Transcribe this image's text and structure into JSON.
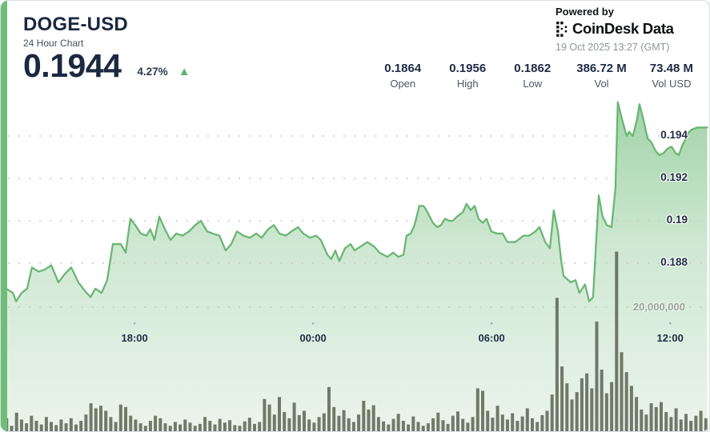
{
  "header": {
    "symbol": "DOGE-USD",
    "subtitle": "24 Hour Chart",
    "price": "0.1944",
    "change": "4.27%",
    "powered_by": "Powered by",
    "brand": "CoinDesk Data",
    "timestamp": "19 Oct 2025 13:27 (GMT)"
  },
  "stats": [
    {
      "value": "0.1864",
      "label": "Open"
    },
    {
      "value": "0.1956",
      "label": "High"
    },
    {
      "value": "0.1862",
      "label": "Low"
    },
    {
      "value": "386.72 M",
      "label": "Vol"
    },
    {
      "value": "73.48 M",
      "label": "Vol USD"
    }
  ],
  "colors": {
    "accent_green": "#6fbe78",
    "line": "#68b671",
    "area_top": "#9ed2a5",
    "area_mid": "#cfe8d2",
    "area_bottom": "#ebf4ec",
    "bar": "#5b6454",
    "grid": "#c6cad1",
    "tick_dot": "#aab0b8",
    "navy": "#1b2840",
    "change_green": "#58b368"
  },
  "chart_data": {
    "type": "area-line with volume bars",
    "title": "DOGE-USD 24 Hour Chart",
    "x_axis": "time (24h window ending 13:27 GMT)",
    "x_ticks": [
      {
        "label": "18:00",
        "hour": 4.55
      },
      {
        "label": "00:00",
        "hour": 10.55
      },
      {
        "label": "06:00",
        "hour": 16.55
      },
      {
        "label": "12:00",
        "hour": 22.55
      }
    ],
    "y_ticks_price": [
      {
        "label": "0.194",
        "value": 0.194
      },
      {
        "label": "0.192",
        "value": 0.192
      },
      {
        "label": "0.19",
        "value": 0.19
      },
      {
        "label": "0.188",
        "value": 0.188
      }
    ],
    "y_tick_volume": {
      "label": "20,000,000",
      "value_millions": 20
    },
    "price_visible_range": [
      0.1862,
      0.1956
    ],
    "grid": "dotted horizontal",
    "series": {
      "name": "DOGE-USD price",
      "points": [
        [
          0,
          0.187
        ],
        [
          0.46,
          0.1866
        ],
        [
          0.57,
          0.1862
        ],
        [
          0.75,
          0.1866
        ],
        [
          0.94,
          0.1868
        ],
        [
          1.1,
          0.1878
        ],
        [
          1.32,
          0.1876
        ],
        [
          1.53,
          0.1877
        ],
        [
          1.75,
          0.1879
        ],
        [
          1.99,
          0.1871
        ],
        [
          2.21,
          0.1875
        ],
        [
          2.42,
          0.1878
        ],
        [
          2.66,
          0.1871
        ],
        [
          2.88,
          0.1867
        ],
        [
          3.07,
          0.1864
        ],
        [
          3.23,
          0.1868
        ],
        [
          3.44,
          0.1866
        ],
        [
          3.63,
          0.1872
        ],
        [
          3.82,
          0.1889
        ],
        [
          4.09,
          0.1889
        ],
        [
          4.25,
          0.1885
        ],
        [
          4.41,
          0.1901
        ],
        [
          4.57,
          0.1898
        ],
        [
          4.76,
          0.1894
        ],
        [
          4.95,
          0.1893
        ],
        [
          5.08,
          0.1896
        ],
        [
          5.22,
          0.1891
        ],
        [
          5.38,
          0.1902
        ],
        [
          5.57,
          0.1896
        ],
        [
          5.76,
          0.1891
        ],
        [
          5.95,
          0.1894
        ],
        [
          6.16,
          0.1893
        ],
        [
          6.38,
          0.1895
        ],
        [
          6.59,
          0.1898
        ],
        [
          6.78,
          0.19
        ],
        [
          6.99,
          0.1895
        ],
        [
          7.18,
          0.1894
        ],
        [
          7.4,
          0.1893
        ],
        [
          7.61,
          0.1886
        ],
        [
          7.8,
          0.1889
        ],
        [
          7.99,
          0.1895
        ],
        [
          8.21,
          0.1893
        ],
        [
          8.42,
          0.1892
        ],
        [
          8.64,
          0.1894
        ],
        [
          8.82,
          0.1892
        ],
        [
          9.04,
          0.1896
        ],
        [
          9.23,
          0.1898
        ],
        [
          9.42,
          0.1894
        ],
        [
          9.63,
          0.1893
        ],
        [
          9.82,
          0.1895
        ],
        [
          10.04,
          0.1897
        ],
        [
          10.22,
          0.1894
        ],
        [
          10.44,
          0.1892
        ],
        [
          10.65,
          0.1893
        ],
        [
          10.81,
          0.1891
        ],
        [
          11.03,
          0.1884
        ],
        [
          11.16,
          0.1882
        ],
        [
          11.3,
          0.1886
        ],
        [
          11.43,
          0.1881
        ],
        [
          11.62,
          0.1887
        ],
        [
          11.81,
          0.1889
        ],
        [
          11.94,
          0.1886
        ],
        [
          12.16,
          0.1888
        ],
        [
          12.37,
          0.189
        ],
        [
          12.59,
          0.1888
        ],
        [
          12.78,
          0.1885
        ],
        [
          13.05,
          0.1883
        ],
        [
          13.24,
          0.1885
        ],
        [
          13.42,
          0.1883
        ],
        [
          13.59,
          0.1884
        ],
        [
          13.69,
          0.1893
        ],
        [
          13.83,
          0.1894
        ],
        [
          13.96,
          0.1898
        ],
        [
          14.12,
          0.1907
        ],
        [
          14.26,
          0.1907
        ],
        [
          14.36,
          0.1905
        ],
        [
          14.58,
          0.1899
        ],
        [
          14.72,
          0.1897
        ],
        [
          14.85,
          0.1898
        ],
        [
          14.98,
          0.1901
        ],
        [
          15.12,
          0.19
        ],
        [
          15.25,
          0.19
        ],
        [
          15.39,
          0.1902
        ],
        [
          15.58,
          0.1904
        ],
        [
          15.71,
          0.1908
        ],
        [
          15.85,
          0.1905
        ],
        [
          15.98,
          0.1907
        ],
        [
          16.11,
          0.1901
        ],
        [
          16.25,
          0.1899
        ],
        [
          16.38,
          0.1901
        ],
        [
          16.54,
          0.1895
        ],
        [
          16.73,
          0.1894
        ],
        [
          16.92,
          0.1894
        ],
        [
          17.08,
          0.189
        ],
        [
          17.35,
          0.189
        ],
        [
          17.62,
          0.1893
        ],
        [
          17.81,
          0.1893
        ],
        [
          18.02,
          0.1895
        ],
        [
          18.16,
          0.1897
        ],
        [
          18.35,
          0.189
        ],
        [
          18.51,
          0.1887
        ],
        [
          18.64,
          0.1905
        ],
        [
          18.78,
          0.1895
        ],
        [
          18.88,
          0.1882
        ],
        [
          18.97,
          0.1874
        ],
        [
          19.21,
          0.1871
        ],
        [
          19.37,
          0.1872
        ],
        [
          19.5,
          0.1866
        ],
        [
          19.69,
          0.187
        ],
        [
          19.83,
          0.1862
        ],
        [
          19.96,
          0.1864
        ],
        [
          20.15,
          0.1912
        ],
        [
          20.28,
          0.1902
        ],
        [
          20.42,
          0.1898
        ],
        [
          20.58,
          0.1897
        ],
        [
          20.71,
          0.1915
        ],
        [
          20.79,
          0.1956
        ],
        [
          20.95,
          0.1947
        ],
        [
          21.09,
          0.194
        ],
        [
          21.17,
          0.1942
        ],
        [
          21.3,
          0.194
        ],
        [
          21.44,
          0.1948
        ],
        [
          21.52,
          0.1955
        ],
        [
          21.65,
          0.1948
        ],
        [
          21.79,
          0.1939
        ],
        [
          21.92,
          0.1937
        ],
        [
          22.06,
          0.1933
        ],
        [
          22.19,
          0.1931
        ],
        [
          22.33,
          0.1932
        ],
        [
          22.46,
          0.1934
        ],
        [
          22.6,
          0.1935
        ],
        [
          22.73,
          0.1932
        ],
        [
          22.84,
          0.1931
        ],
        [
          22.97,
          0.1936
        ],
        [
          23.05,
          0.1938
        ],
        [
          23.13,
          0.1941
        ],
        [
          23.27,
          0.1943
        ],
        [
          23.46,
          0.1944
        ],
        [
          23.8,
          0.1944
        ]
      ]
    },
    "volume_millions": [
      1.2,
      2.2,
      1.0,
      3.1,
      2.0,
      1.4,
      2.6,
      1.8,
      1.2,
      2.4,
      1.6,
      1.1,
      2.0,
      1.4,
      2.2,
      1.2,
      1.8,
      2.8,
      4.6,
      3.8,
      4.2,
      3.4,
      2.4,
      1.6,
      4.4,
      4.0,
      2.6,
      2.0,
      1.4,
      1.0,
      1.8,
      2.6,
      2.2,
      1.4,
      1.0,
      1.6,
      1.2,
      2.0,
      1.5,
      1.0,
      1.3,
      2.4,
      1.8,
      1.2,
      2.1,
      1.5,
      1.9,
      1.1,
      1.0,
      1.7,
      2.3,
      1.3,
      1.6,
      5.3,
      4.4,
      2.8,
      5.6,
      3.2,
      2.2,
      4.7,
      2.7,
      3.4,
      2.0,
      1.5,
      2.4,
      3.0,
      7.2,
      4.0,
      2.6,
      3.5,
      2.2,
      1.6,
      2.8,
      5.0,
      3.6,
      4.3,
      2.4,
      1.7,
      1.2,
      2.1,
      2.9,
      1.8,
      1.2,
      2.5,
      1.6,
      1.0,
      1.4,
      2.2,
      3.1,
      1.9,
      1.3,
      2.6,
      3.3,
      2.1,
      1.5,
      2.4,
      7.0,
      6.6,
      3.4,
      2.3,
      4.2,
      2.8,
      2.0,
      3.0,
      1.8,
      2.5,
      3.8,
      2.2,
      1.6,
      2.7,
      3.4,
      6.0,
      21.5,
      10.5,
      7.8,
      5.2,
      6.4,
      8.6,
      9.4,
      7.0,
      17.7,
      10.0,
      6.2,
      8.0,
      28.9,
      12.8,
      9.6,
      7.4,
      5.6,
      3.6,
      2.8,
      4.6,
      4.0,
      4.8,
      3.2,
      2.4,
      3.8,
      2.0,
      2.9,
      1.8,
      2.6,
      3.4,
      2.2,
      4.6
    ]
  }
}
